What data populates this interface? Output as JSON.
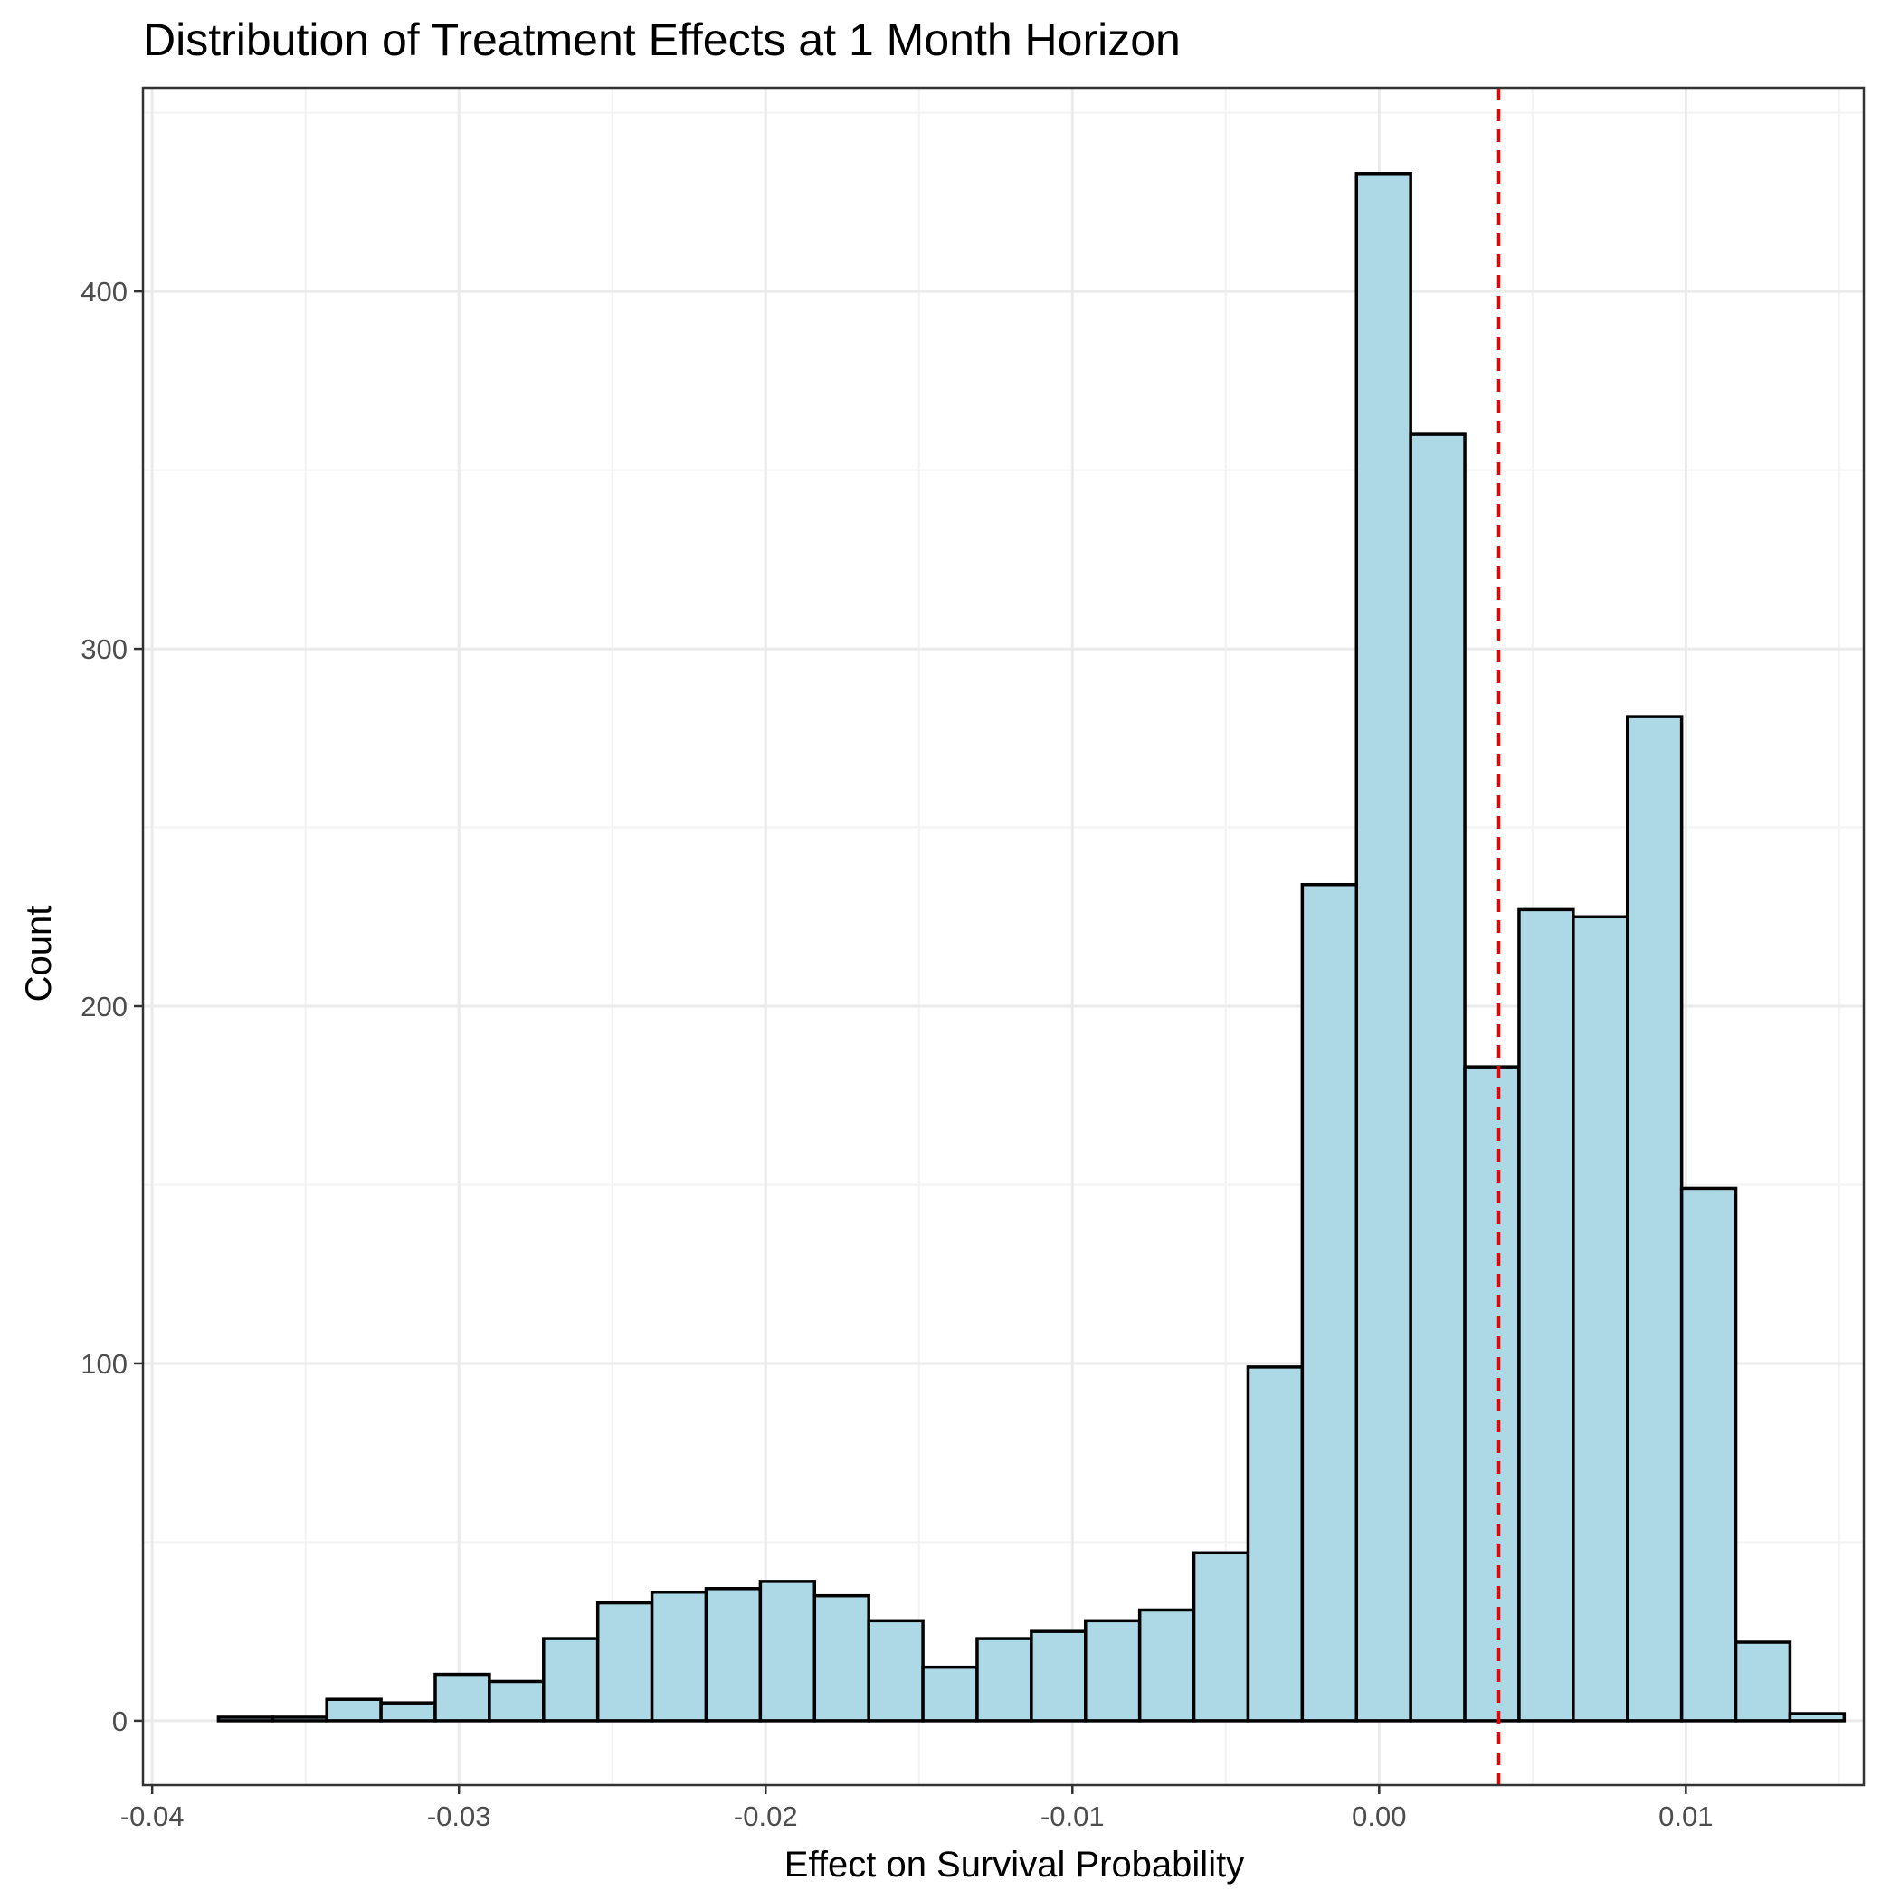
{
  "chart_data": {
    "type": "bar",
    "title": "Distribution of Treatment Effects at 1 Month Horizon",
    "xlabel": "Effect on Survival Probability",
    "ylabel": "Count",
    "xlim": [
      -0.0403,
      0.0158
    ],
    "ylim": [
      -18,
      457
    ],
    "x_ticks": [
      -0.04,
      -0.03,
      -0.02,
      -0.01,
      0.0,
      0.01
    ],
    "x_tick_labels": [
      "-0.04",
      "-0.03",
      "-0.02",
      "-0.01",
      "0.00",
      "0.01"
    ],
    "y_ticks": [
      0,
      100,
      200,
      300,
      400
    ],
    "y_tick_labels": [
      "0",
      "100",
      "200",
      "300",
      "400"
    ],
    "bin_start": -0.03784,
    "bin_width": 0.0017667,
    "counts": [
      1,
      1,
      6,
      5,
      13,
      11,
      23,
      33,
      36,
      37,
      39,
      35,
      28,
      15,
      23,
      25,
      28,
      31,
      47,
      99,
      234,
      433,
      360,
      183,
      227,
      225,
      281,
      149,
      22,
      2
    ],
    "reference_line": {
      "x": 0.0039,
      "style": "dashed"
    },
    "grid": true,
    "colors": {
      "bar_fill": "#add8e6",
      "bar_stroke": "#000000",
      "reference_line": "#ee0000",
      "grid_major": "#ebebeb",
      "grid_minor": "#f3f3f3",
      "panel_border": "#333333"
    }
  }
}
